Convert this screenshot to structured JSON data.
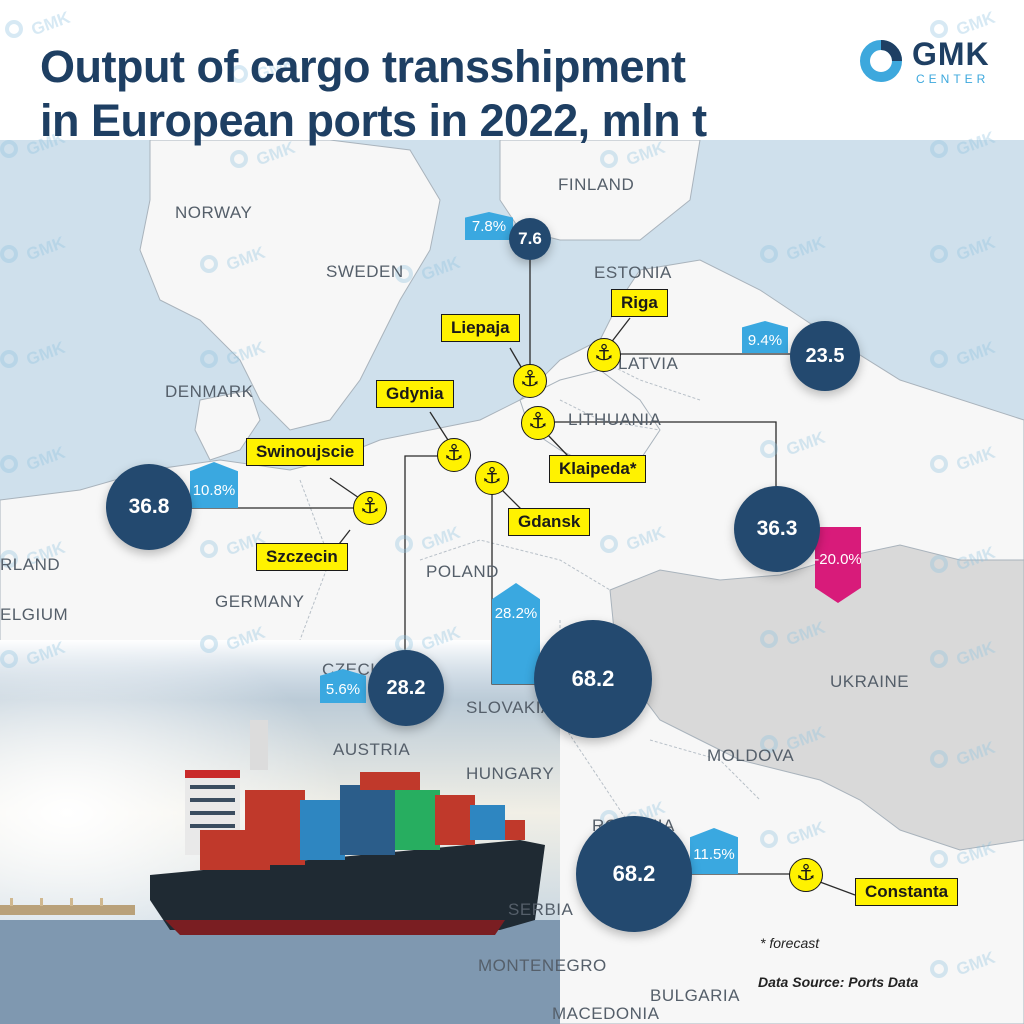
{
  "title": {
    "line1": "Output of cargo transshipment",
    "line2": "in European ports in 2022, mln t"
  },
  "logo": {
    "word": "GMK",
    "sub": "CENTER"
  },
  "countries": {
    "finland": "FINLAND",
    "norway": "NORWAY",
    "sweden": "SWEDEN",
    "estonia": "ESTONIA",
    "latvia": "LATVIA",
    "denmark": "DENMARK",
    "lithuania": "LITHUANIA",
    "poland": "POLAND",
    "germany": "GERMANY",
    "netherlands": "RLAND",
    "belgium": "ELGIUM",
    "czechia": "CZECH",
    "slovakia": "SLOVAKIA",
    "austria": "AUSTRIA",
    "hungary": "HUNGARY",
    "ukraine": "UKRAINE",
    "moldova": "MOLDOVA",
    "romania": "ROMANIA",
    "serbia": "SERBIA",
    "montenegro": "MONTENEGRO",
    "bulgaria": "BULGARIA",
    "macedonia": "MACEDONIA"
  },
  "ports": {
    "riga": "Riga",
    "liepaja": "Liepaja",
    "gdynia": "Gdynia",
    "klaipeda": "Klaipeda*",
    "swinoujscie": "Swinoujscie",
    "gdansk": "Gdansk",
    "szczecin": "Szczecin",
    "constanta": "Constanta"
  },
  "anchor_glyph": "⚓",
  "volumes": {
    "liepaja": "7.6",
    "riga": "23.5",
    "szczecin_swinoujscie": "36.8",
    "klaipeda": "36.3",
    "gdynia": "28.2",
    "gdansk": "68.2",
    "constanta": "68.2"
  },
  "changes": {
    "liepaja": "7.8%",
    "riga": "9.4%",
    "szczecin_swinoujscie": "10.8%",
    "klaipeda": "-20.0%",
    "gdynia": "5.6%",
    "gdansk": "28.2%",
    "constanta": "11.5%"
  },
  "colors": {
    "title": "#1e3f63",
    "bubble": "#23496f",
    "increase": "#3aa8e0",
    "decrease": "#d81b7a",
    "port_label": "#fff200",
    "sea": "#cfe0ec",
    "land": "#f7f7f7",
    "ukraine": "#d9d9d9"
  },
  "notes": {
    "forecast": "* forecast",
    "source": "Data Source: Ports Data"
  },
  "watermark": "GMK"
}
